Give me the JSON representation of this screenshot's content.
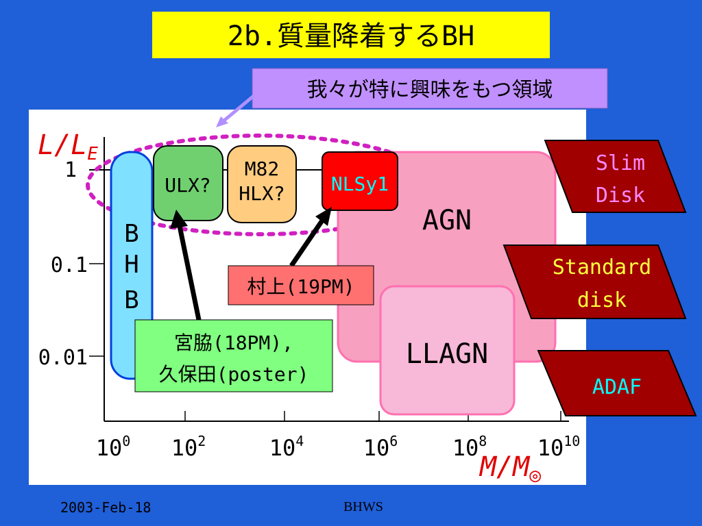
{
  "header": {
    "title": "2b.質量降着するBH"
  },
  "callout": "我々が特に興味をもつ領域",
  "axes": {
    "y_label": {
      "main": "L/L",
      "sub": "E"
    },
    "x_label": {
      "main": "M/M",
      "sub": "◎"
    },
    "y_ticks": [
      "1",
      "0.1",
      "0.01"
    ],
    "x_ticks": [
      {
        "base": "10",
        "exp": "0"
      },
      {
        "base": "10",
        "exp": "2"
      },
      {
        "base": "10",
        "exp": "4"
      },
      {
        "base": "10",
        "exp": "6"
      },
      {
        "base": "10",
        "exp": "8"
      },
      {
        "base": "10",
        "exp": "10"
      }
    ]
  },
  "regions": {
    "bhb": [
      "B",
      "H",
      "B"
    ],
    "ulx": "ULX?",
    "hlx": [
      "M82",
      "HLX?"
    ],
    "nlsy1": "NLSy1",
    "agn": "AGN",
    "llagn": "LLAGN"
  },
  "notes": {
    "murakami": "村上(19PM)",
    "miyawaki": [
      "宮脇(18PM),",
      "久保田(poster)"
    ]
  },
  "disks": [
    [
      "Slim",
      "Disk"
    ],
    [
      "Standard",
      "disk"
    ],
    [
      "ADAF"
    ]
  ],
  "footer": {
    "date": "2003-Feb-18",
    "event": "BHWS"
  }
}
